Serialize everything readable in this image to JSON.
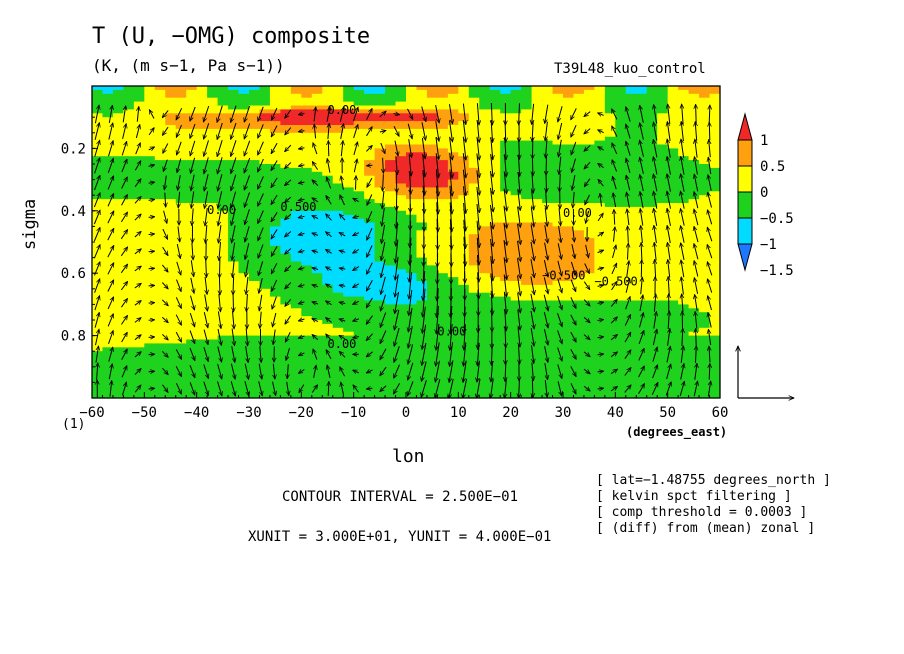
{
  "chart_data": {
    "type": "contour",
    "title": "T (U, −OMG) composite",
    "subtitle": "(K, (m s−1, Pa s−1))",
    "experiment": "T39L48_kuo_control",
    "xlabel": "lon",
    "xunits": "(degrees_east)",
    "ylabel": "sigma",
    "y_axis_mark": "(1)",
    "xlim": [
      -60,
      60
    ],
    "ylim": [
      1.0,
      0.0
    ],
    "x_ticks": [
      -60,
      -50,
      -40,
      -30,
      -20,
      -10,
      0,
      10,
      20,
      30,
      40,
      50,
      60
    ],
    "x_tick_labels": [
      "−60",
      "−50",
      "−40",
      "−30",
      "−20",
      "−10",
      "0",
      "10",
      "20",
      "30",
      "40",
      "50",
      "60"
    ],
    "y_ticks": [
      0.2,
      0.4,
      0.6,
      0.8
    ],
    "y_tick_labels": [
      "0.2",
      "0.4",
      "0.6",
      "0.8"
    ],
    "colorbar": {
      "levels": [
        -1.5,
        -1,
        -0.5,
        0,
        0.5,
        1
      ],
      "labels": [
        "−1.5",
        "−1",
        "−0.5",
        "0",
        "0.5",
        "1"
      ],
      "colors": [
        "#1e78ff",
        "#00dcff",
        "#1ed21e",
        "#ffff00",
        "#ffa00f",
        "#f02828"
      ]
    },
    "contour_labels": [
      "0.00",
      "0.500",
      "−0.500",
      "0.00",
      "−0.500",
      "0.00",
      "0.00",
      "0.00"
    ],
    "contour_interval_text": "CONTOUR INTERVAL = 2.500E−01",
    "unit_vector_text": "XUNIT = 3.000E+01, YUNIT = 4.000E−01",
    "info_lines": [
      "[ lat=−1.48755 degrees_north ]",
      "[ kelvin spct filtering ]",
      "[ comp threshold = 0.0003 ]",
      "[ (diff) from (mean) zonal ]"
    ]
  }
}
